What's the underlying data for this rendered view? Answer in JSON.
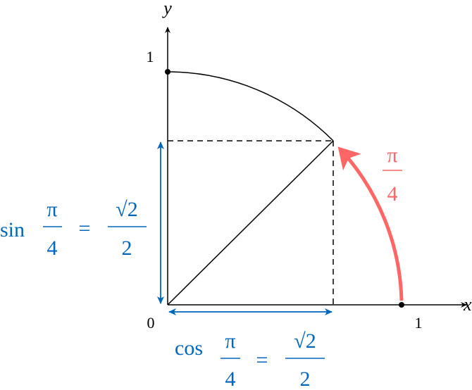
{
  "axes": {
    "x_label": "x",
    "y_label": "y",
    "origin_label": "0",
    "x_tick_label": "1",
    "y_tick_label": "1"
  },
  "angle": {
    "numerator": "π",
    "denominator": "4"
  },
  "sin_label": {
    "func": "sin",
    "frac_num": "π",
    "frac_den": "4",
    "equals": "=",
    "value_num": "√2",
    "value_den": "2"
  },
  "cos_label": {
    "func": "cos",
    "frac_num": "π",
    "frac_den": "4",
    "equals": "=",
    "value_num": "√2",
    "value_den": "2"
  },
  "colors": {
    "axis": "#000000",
    "angle_arc": "#ff6666",
    "projection": "#0066bb"
  }
}
